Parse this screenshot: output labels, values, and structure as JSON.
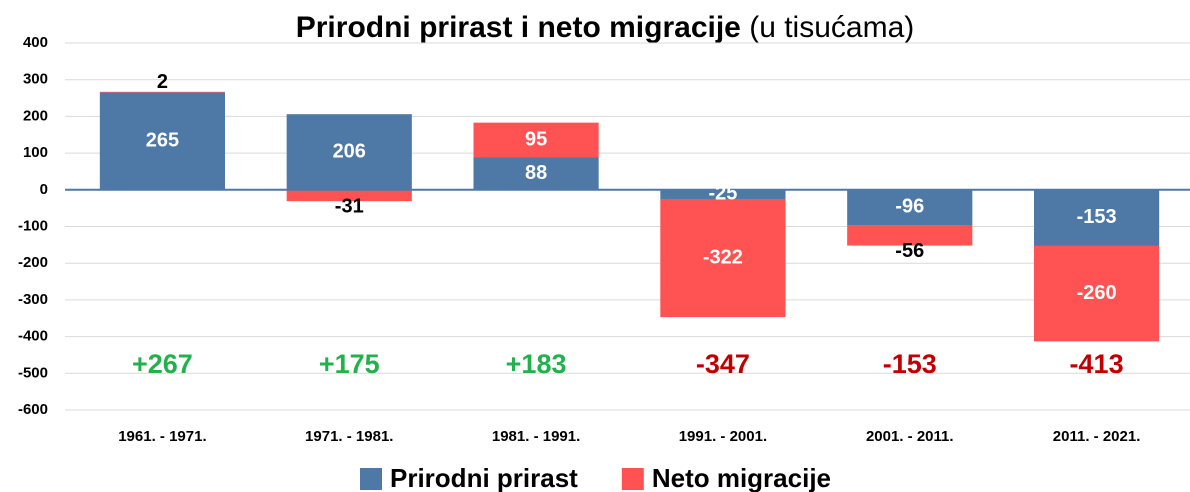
{
  "chart_data": {
    "type": "bar",
    "stacked": true,
    "title": "Prirodni prirast i neto migracije",
    "subtitle": "(u tisućama)",
    "categories": [
      "1961. - 1971.",
      "1971. - 1981.",
      "1981. - 1991.",
      "1991. - 2001.",
      "2001. - 2011.",
      "2011. - 2021."
    ],
    "series": [
      {
        "name": "Prirodni prirast",
        "color": "#4e79a7",
        "values": [
          265,
          206,
          88,
          -25,
          -96,
          -153
        ]
      },
      {
        "name": "Neto migracije",
        "color": "#ff5252",
        "values": [
          2,
          -31,
          95,
          -322,
          -56,
          -260
        ]
      }
    ],
    "annotations": [
      {
        "text": "+267",
        "color": "#22b14c"
      },
      {
        "text": "+175",
        "color": "#22b14c"
      },
      {
        "text": "+183",
        "color": "#22b14c"
      },
      {
        "text": "-347",
        "color": "#c00000"
      },
      {
        "text": "-153",
        "color": "#c00000"
      },
      {
        "text": "-413",
        "color": "#c00000"
      }
    ],
    "ylim": [
      -600,
      400
    ],
    "yticks": [
      -600,
      -500,
      -400,
      -300,
      -200,
      -100,
      0,
      100,
      200,
      300,
      400
    ],
    "grid": true,
    "legend": "bottom"
  }
}
